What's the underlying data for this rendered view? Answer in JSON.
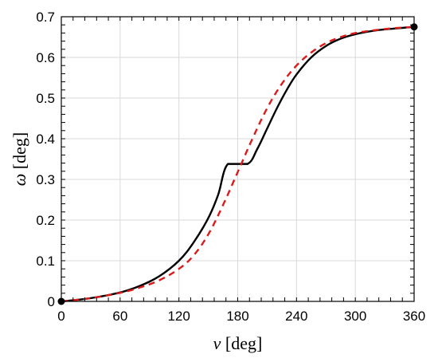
{
  "chart_data": {
    "type": "line",
    "title": "",
    "xlabel": {
      "symbol": "ν",
      "unit": " [deg]"
    },
    "ylabel": {
      "symbol": "ω",
      "unit": " [deg]"
    },
    "xlim": [
      0,
      360
    ],
    "ylim": [
      0,
      0.7
    ],
    "xticks": [
      0,
      60,
      120,
      180,
      240,
      300,
      360
    ],
    "yticks": [
      0,
      0.1,
      0.2,
      0.3,
      0.4,
      0.5,
      0.6,
      0.7
    ],
    "grid": true,
    "colors": {
      "solid": "#000000",
      "dashed": "#dd1a1a",
      "grid": "#d9d9d9"
    },
    "series": [
      {
        "style": "solid",
        "x": [
          0,
          30,
          60,
          80,
          100,
          120,
          135,
          150,
          160,
          170,
          190,
          200,
          210,
          220,
          230,
          240,
          255,
          270,
          285,
          300,
          320,
          340,
          360
        ],
        "y": [
          0,
          0.008,
          0.022,
          0.038,
          0.062,
          0.1,
          0.145,
          0.205,
          0.262,
          0.338,
          0.338,
          0.375,
          0.425,
          0.475,
          0.52,
          0.558,
          0.6,
          0.628,
          0.646,
          0.657,
          0.666,
          0.671,
          0.675
        ]
      },
      {
        "style": "dashed",
        "x": [
          0,
          30,
          60,
          80,
          100,
          120,
          135,
          150,
          165,
          180,
          195,
          210,
          225,
          240,
          255,
          270,
          285,
          300,
          320,
          340,
          360
        ],
        "y": [
          0,
          0.008,
          0.021,
          0.034,
          0.052,
          0.08,
          0.113,
          0.165,
          0.237,
          0.318,
          0.4,
          0.475,
          0.535,
          0.58,
          0.612,
          0.635,
          0.65,
          0.66,
          0.667,
          0.672,
          0.675
        ]
      }
    ],
    "markers": [
      {
        "x": 0,
        "y": 0
      },
      {
        "x": 360,
        "y": 0.675
      }
    ]
  }
}
